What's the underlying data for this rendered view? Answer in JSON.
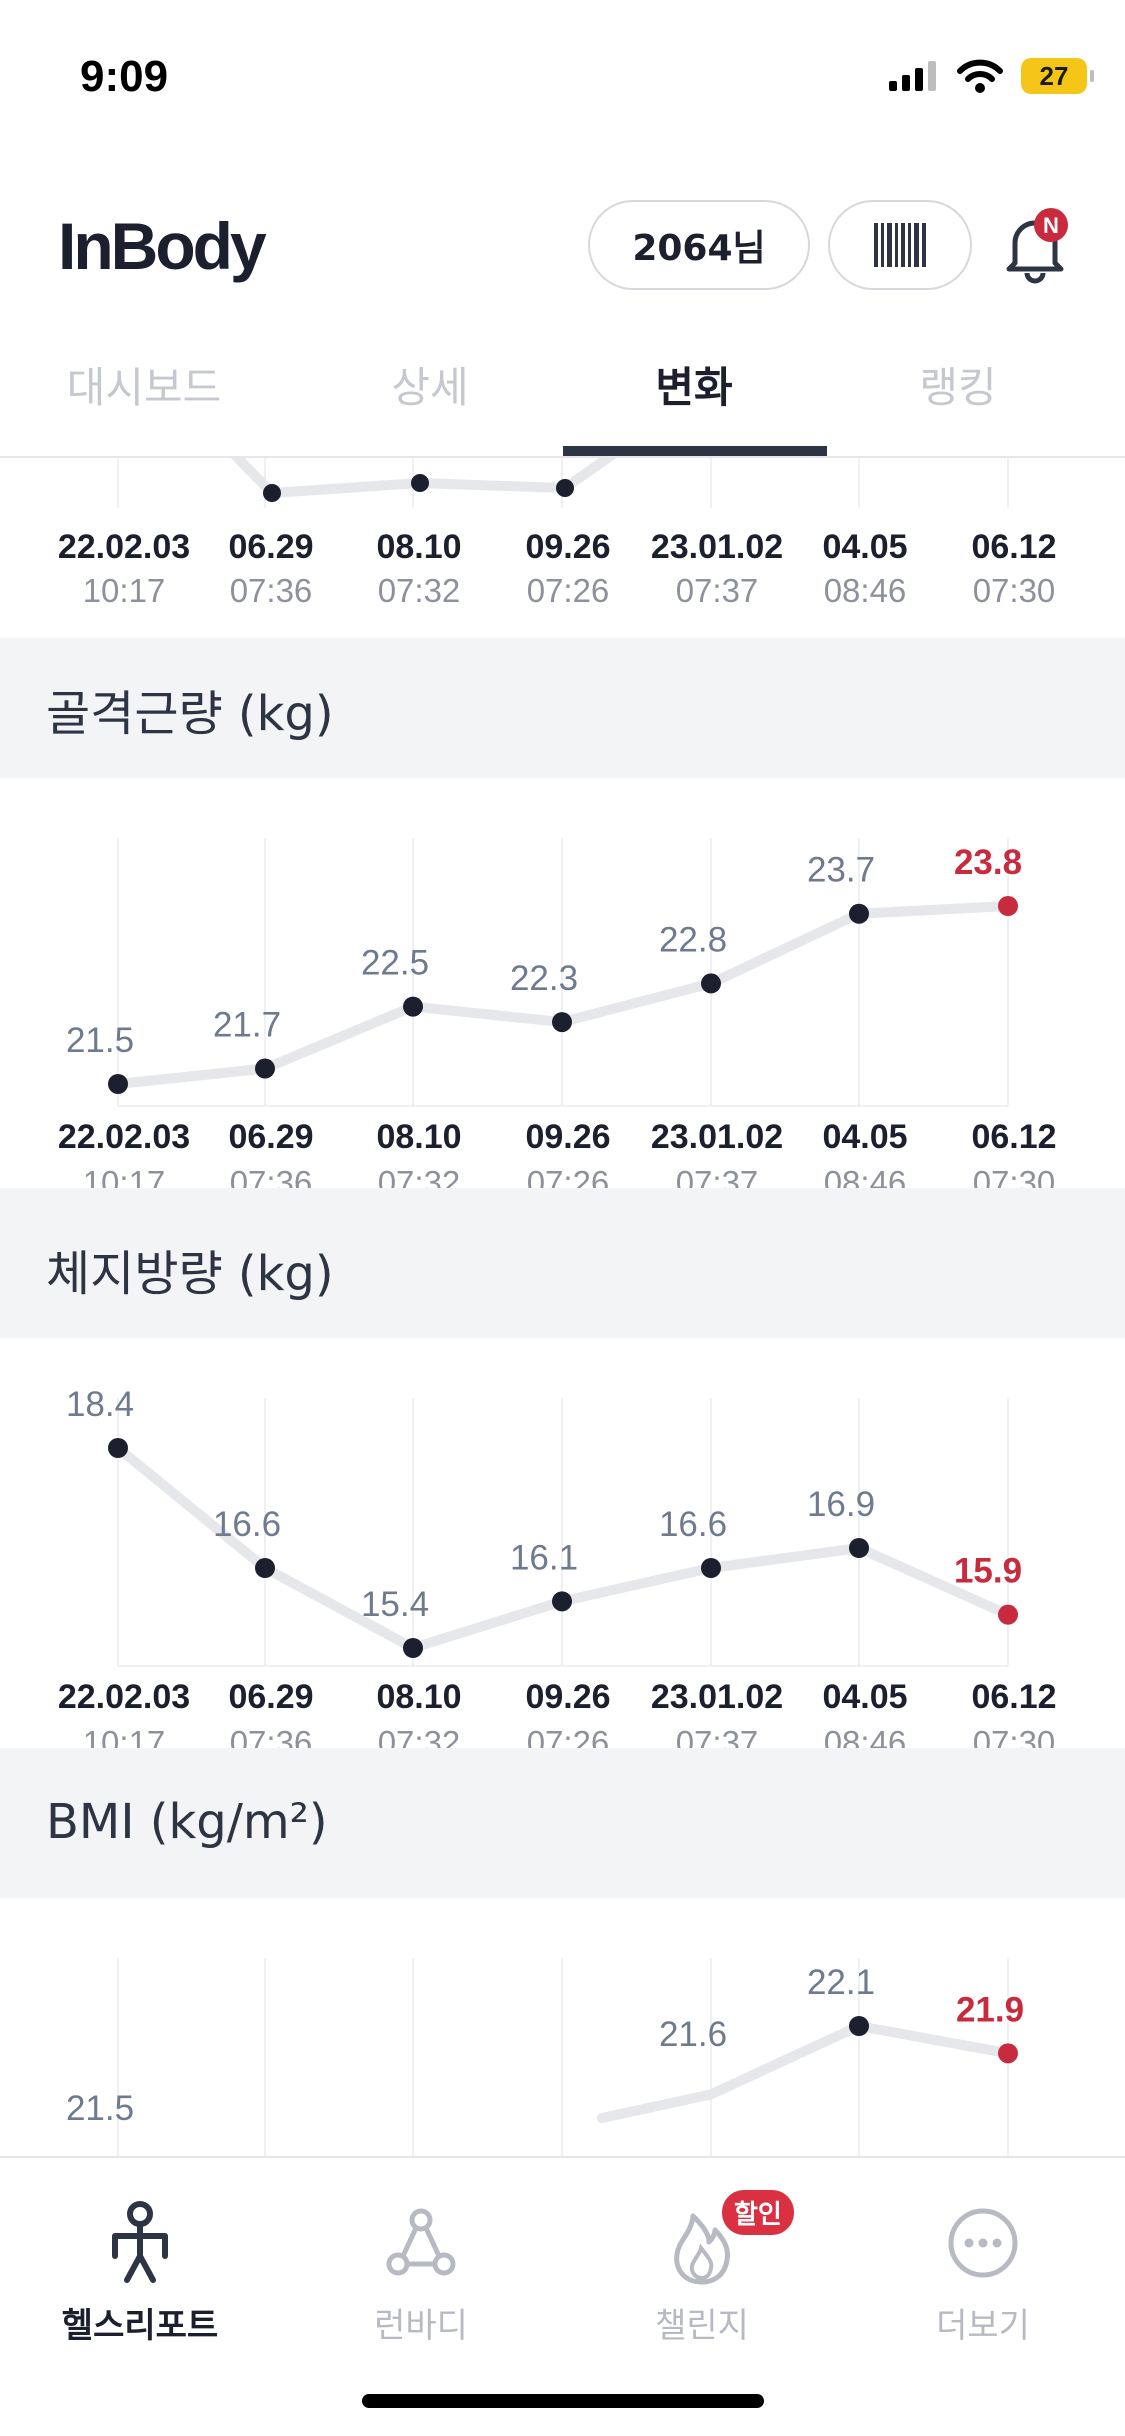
{
  "status_bar": {
    "time": "9:09",
    "battery": "27"
  },
  "header": {
    "logo": "InBody",
    "user_label": "2064님",
    "notification_badge": "N"
  },
  "tabs": [
    {
      "label": "대시보드",
      "active": false
    },
    {
      "label": "상세",
      "active": false
    },
    {
      "label": "변화",
      "active": true
    },
    {
      "label": "랭킹",
      "active": false
    }
  ],
  "accent_color": "#c82a3e",
  "x_labels": {
    "dates": [
      "22.02.03",
      "06.29",
      "08.10",
      "09.26",
      "23.01.02",
      "04.05",
      "06.12"
    ],
    "times": [
      "10:17",
      "07:36",
      "07:32",
      "07:26",
      "07:37",
      "08:46",
      "07:30"
    ]
  },
  "sections": {
    "muscle": {
      "title": "골격근량 (kg)"
    },
    "fat": {
      "title": "체지방량 (kg)"
    },
    "bmi": {
      "title": "BMI (kg/m²)"
    }
  },
  "chart_data": [
    {
      "type": "line",
      "title": "골격근량 (kg)",
      "categories": [
        "22.02.03",
        "06.29",
        "08.10",
        "09.26",
        "23.01.02",
        "04.05",
        "06.12"
      ],
      "values": [
        21.5,
        21.7,
        22.5,
        22.3,
        22.8,
        23.7,
        23.8
      ],
      "ylim": [
        21.5,
        23.8
      ],
      "highlight_last": true
    },
    {
      "type": "line",
      "title": "체지방량 (kg)",
      "categories": [
        "22.02.03",
        "06.29",
        "08.10",
        "09.26",
        "23.01.02",
        "04.05",
        "06.12"
      ],
      "values": [
        18.4,
        16.6,
        15.4,
        16.1,
        16.6,
        16.9,
        15.9
      ],
      "ylim": [
        15.4,
        18.4
      ],
      "highlight_last": true
    },
    {
      "type": "line",
      "title": "BMI (kg/m²)",
      "categories": [
        "22.02.03",
        "06.29",
        "08.10",
        "09.26",
        "23.01.02",
        "04.05",
        "06.12"
      ],
      "values": [
        21.5,
        null,
        null,
        null,
        21.6,
        22.1,
        21.9
      ],
      "highlight_last": true
    }
  ],
  "bottom_nav": [
    {
      "label": "헬스리포트",
      "active": true
    },
    {
      "label": "런바디",
      "active": false
    },
    {
      "label": "챌린지",
      "active": false,
      "badge": "할인"
    },
    {
      "label": "더보기",
      "active": false
    }
  ]
}
